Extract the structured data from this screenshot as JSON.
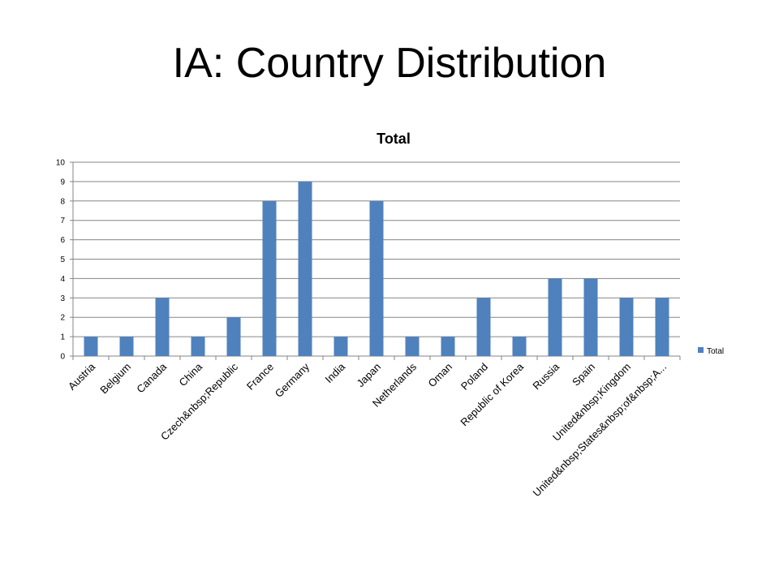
{
  "slide": {
    "title": "IA: Country Distribution"
  },
  "colors": {
    "bar": "#4F81BD",
    "grid": "#868686",
    "axis": "#868686"
  },
  "chart_data": {
    "type": "bar",
    "title": "Total",
    "categories": [
      "Austria",
      "Belgium",
      "Canada",
      "China",
      "Czech&nbsp;Republic",
      "France",
      "Germany",
      "India",
      "Japan",
      "Netherlands",
      "Oman",
      "Poland",
      "Republic of Korea",
      "Russia",
      "Spain",
      "United&nbsp;Kingdom",
      "United&nbsp;States&nbsp;of&nbsp;A..."
    ],
    "series": [
      {
        "name": "Total",
        "values": [
          1,
          1,
          3,
          1,
          2,
          8,
          9,
          1,
          8,
          1,
          1,
          3,
          1,
          4,
          4,
          3,
          3
        ]
      }
    ],
    "ylim": [
      0,
      10
    ],
    "yticks": [
      "0",
      "1",
      "2",
      "3",
      "4",
      "5",
      "6",
      "7",
      "8",
      "9",
      "10"
    ],
    "grid": true,
    "legend": "right"
  }
}
